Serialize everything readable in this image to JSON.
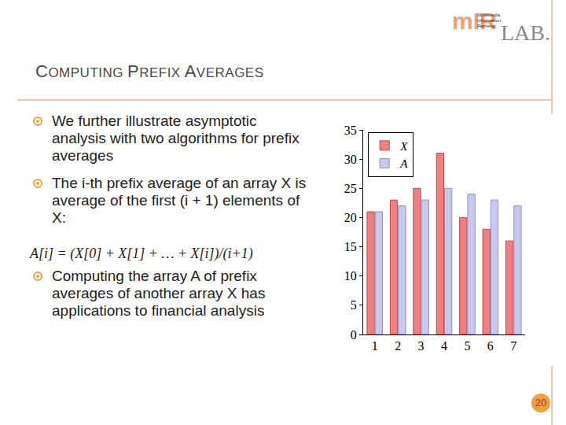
{
  "header": {
    "title": "COMPUTING PREFIX AVERAGES"
  },
  "logo": {
    "left": "mIR",
    "right": "LAB.",
    "caption": [
      "Multimedia",
      "Information",
      "Retrieval"
    ]
  },
  "bullets": [
    "We further illustrate asymptotic analysis with two algorithms for prefix averages",
    "The i-th prefix average of an array X is average of the first (i + 1) elements of X:",
    "Computing the array A of prefix averages of another array X has applications to financial analysis"
  ],
  "formula": "A[i] = (X[0] + X[1] + … + X[i])/(i+1)",
  "page_number": 20,
  "chart_data": {
    "type": "bar",
    "categories": [
      "1",
      "2",
      "3",
      "4",
      "5",
      "6",
      "7"
    ],
    "series": [
      {
        "name": "X",
        "color": "#ee8080",
        "values": [
          21,
          23,
          25,
          31,
          20,
          18,
          16
        ]
      },
      {
        "name": "A",
        "color": "#c8c8ee",
        "values": [
          21,
          22,
          23,
          25,
          24,
          23,
          22
        ]
      }
    ],
    "ylim": [
      0,
      35
    ],
    "yticks": [
      0,
      5,
      10,
      15,
      20,
      25,
      30,
      35
    ],
    "grid": false,
    "legend": "top-left"
  }
}
